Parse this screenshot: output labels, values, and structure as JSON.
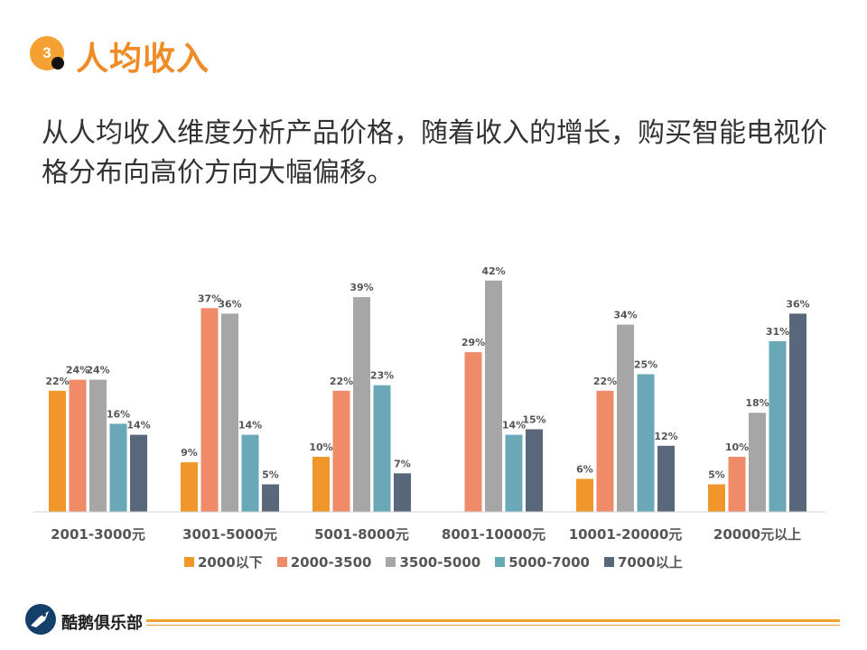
{
  "header": {
    "section_number": "3",
    "title": "人均收入"
  },
  "intro_text": "从人均收入维度分析产品价格，随着收入的增长，购买智能电视价格分布向高价方向大幅偏移。",
  "chart_data": {
    "type": "bar",
    "categories": [
      "2001-3000元",
      "3001-5000元",
      "5001-8000元",
      "8001-10000元",
      "10001-20000元",
      "20000元以上"
    ],
    "series": [
      {
        "name": "2000以下",
        "color": "#f0962a",
        "values": [
          22,
          9,
          10,
          null,
          6,
          5
        ]
      },
      {
        "name": "2000-3500",
        "color": "#f08b69",
        "values": [
          24,
          37,
          22,
          29,
          22,
          10
        ]
      },
      {
        "name": "3500-5000",
        "color": "#a6a6a6",
        "values": [
          24,
          36,
          39,
          42,
          34,
          18
        ]
      },
      {
        "name": "5000-7000",
        "color": "#69a8b6",
        "values": [
          16,
          14,
          23,
          14,
          25,
          31
        ]
      },
      {
        "name": "7000以上",
        "color": "#58677a",
        "values": [
          14,
          5,
          7,
          15,
          12,
          36
        ]
      }
    ],
    "value_suffix": "%",
    "ylim": [
      0,
      45
    ],
    "legend_position": "bottom",
    "grid": false
  },
  "footer": {
    "brand": "酷鹅俱乐部"
  }
}
